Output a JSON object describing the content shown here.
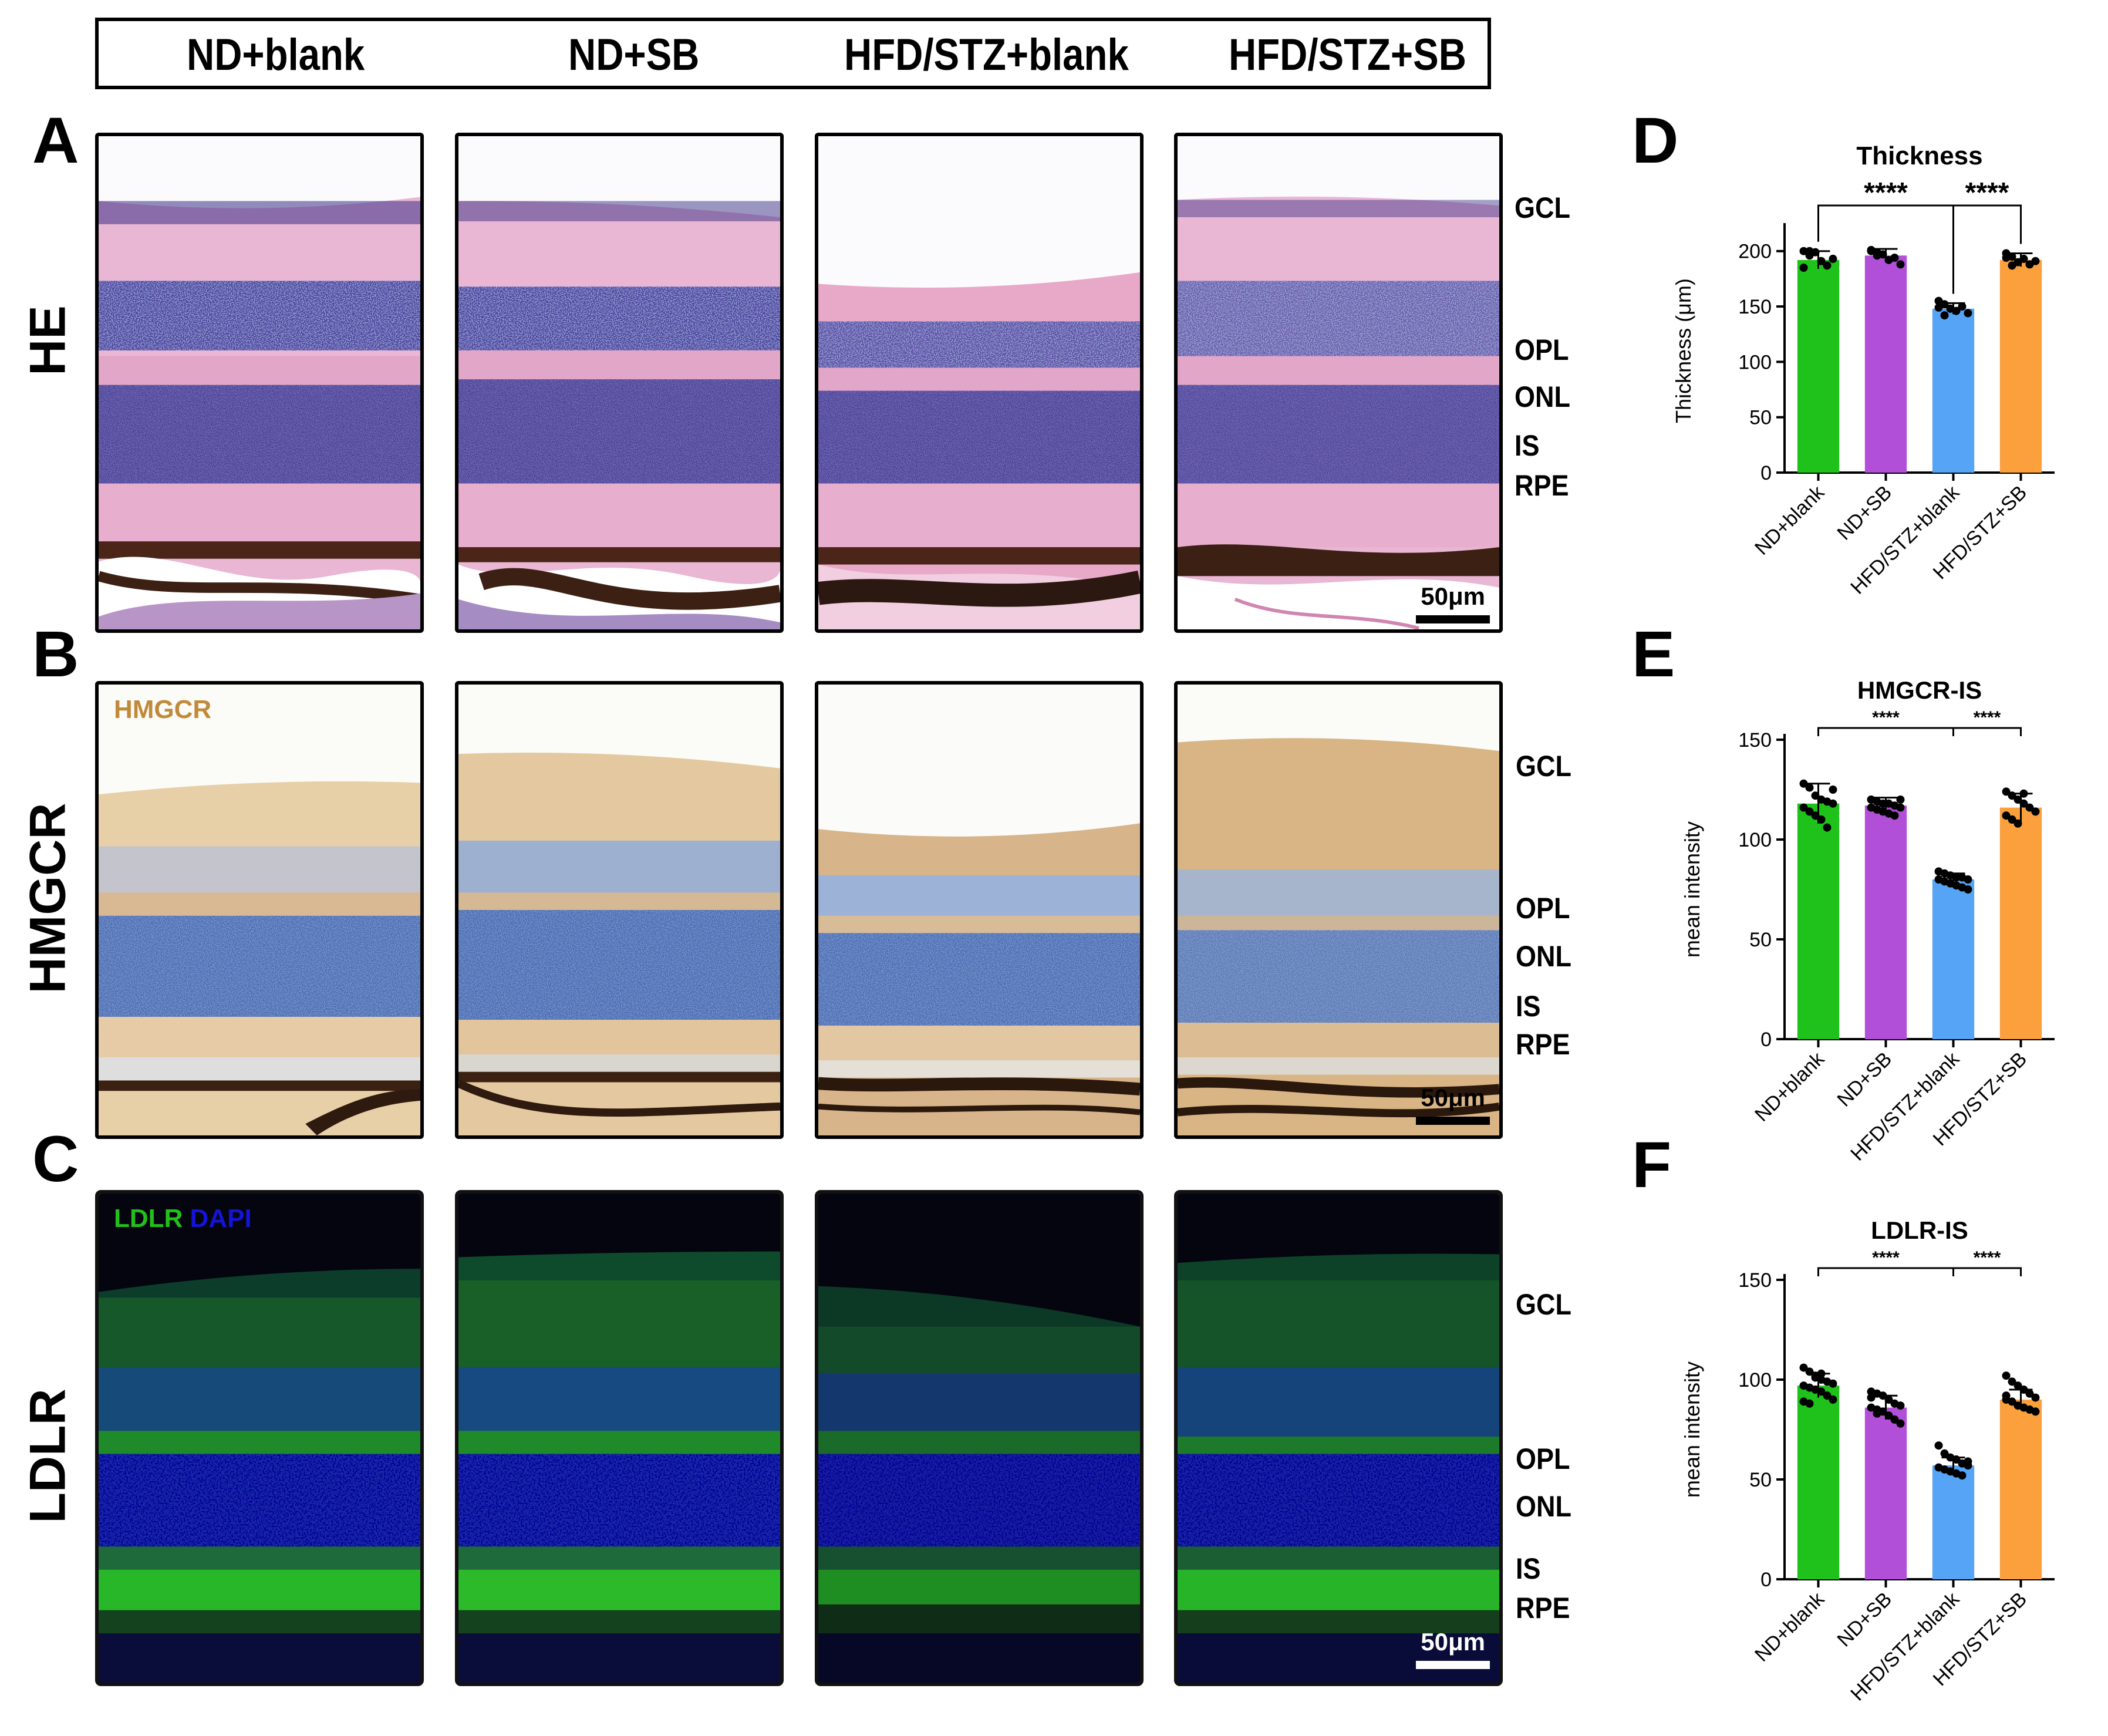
{
  "groups": [
    "ND+blank",
    "ND+SB",
    "HFD/STZ+blank",
    "HFD/STZ+SB"
  ],
  "panel_letters": {
    "A": "A",
    "B": "B",
    "C": "C",
    "D": "D",
    "E": "E",
    "F": "F"
  },
  "rows": {
    "he": {
      "label": "HE",
      "scale": "50μm"
    },
    "hmgcr": {
      "label": "HMGCR",
      "stain": "HMGCR",
      "scale": "50μm"
    },
    "ldlr": {
      "label": "LDLR",
      "stain_green": "LDLR",
      "stain_blue": "DAPI",
      "scale": "50μm"
    }
  },
  "layer_labels": [
    "GCL",
    "OPL",
    "ONL",
    "IS",
    "RPE"
  ],
  "colors": {
    "nd_blank": "#1fc21a",
    "nd_sb": "#b24fd8",
    "hfd_blank": "#55a4f6",
    "hfd_sb": "#fba03d",
    "ldlr_green": "#22c11a",
    "dapi_blue": "#1414d6",
    "hmgcr_brown": "#c18a3a"
  },
  "chart_data": [
    {
      "type": "bar",
      "title": "Thickness",
      "ylabel": "Thickness (μm)",
      "categories": [
        "ND+blank",
        "ND+SB",
        "HFD/STZ+blank",
        "HFD/STZ+SB"
      ],
      "values": [
        192,
        196,
        148,
        192
      ],
      "errors": [
        8,
        6,
        5,
        6
      ],
      "points": [
        [
          200,
          196,
          199,
          191,
          187,
          193,
          185,
          200
        ],
        [
          201,
          199,
          197,
          192,
          194,
          188,
          200,
          196
        ],
        [
          155,
          152,
          148,
          146,
          150,
          144,
          149,
          142
        ],
        [
          198,
          195,
          190,
          193,
          188,
          191,
          194,
          187
        ]
      ],
      "ylim": [
        0,
        220
      ],
      "yticks": [
        0,
        50,
        100,
        150,
        200
      ],
      "significance": [
        {
          "from": 0,
          "to": 2,
          "label": "****"
        },
        {
          "from": 2,
          "to": 3,
          "label": "****"
        }
      ]
    },
    {
      "type": "bar",
      "title": "HMGCR-IS",
      "ylabel": "mean intensity",
      "categories": [
        "ND+blank",
        "ND+SB",
        "HFD/STZ+blank",
        "HFD/STZ+SB"
      ],
      "values": [
        118,
        117,
        80,
        116
      ],
      "errors": [
        10,
        4,
        3,
        7
      ],
      "points": [
        [
          128,
          126,
          122,
          120,
          119,
          118,
          116,
          114,
          112,
          110,
          106,
          125
        ],
        [
          120,
          119,
          118,
          118,
          117,
          116,
          116,
          115,
          114,
          113,
          112,
          120
        ],
        [
          84,
          83,
          82,
          81,
          81,
          80,
          80,
          79,
          78,
          77,
          76,
          75
        ],
        [
          124,
          122,
          120,
          118,
          116,
          114,
          112,
          110,
          108,
          123
        ]
      ],
      "ylim": [
        0,
        150
      ],
      "yticks": [
        0,
        50,
        100,
        150
      ],
      "significance": [
        {
          "from": 0,
          "to": 2,
          "label": "****"
        },
        {
          "from": 2,
          "to": 3,
          "label": "****"
        }
      ]
    },
    {
      "type": "bar",
      "title": "LDLR-IS",
      "ylabel": "mean intensity",
      "categories": [
        "ND+blank",
        "ND+SB",
        "HFD/STZ+blank",
        "HFD/STZ+SB"
      ],
      "values": [
        97,
        86,
        57,
        90
      ],
      "errors": [
        6,
        6,
        4,
        5
      ],
      "points": [
        [
          106,
          104,
          102,
          100,
          99,
          98,
          97,
          96,
          95,
          94,
          92,
          90,
          89,
          88,
          101,
          103
        ],
        [
          94,
          93,
          92,
          90,
          88,
          87,
          86,
          85,
          84,
          82,
          80,
          78,
          91,
          83
        ],
        [
          67,
          63,
          61,
          60,
          58,
          57,
          56,
          55,
          54,
          53,
          52,
          59
        ],
        [
          102,
          99,
          97,
          95,
          93,
          91,
          90,
          89,
          87,
          86,
          85,
          84,
          92
        ]
      ],
      "ylim": [
        0,
        150
      ],
      "yticks": [
        0,
        50,
        100,
        150
      ],
      "significance": [
        {
          "from": 0,
          "to": 2,
          "label": "****"
        },
        {
          "from": 2,
          "to": 3,
          "label": "****"
        }
      ]
    }
  ]
}
